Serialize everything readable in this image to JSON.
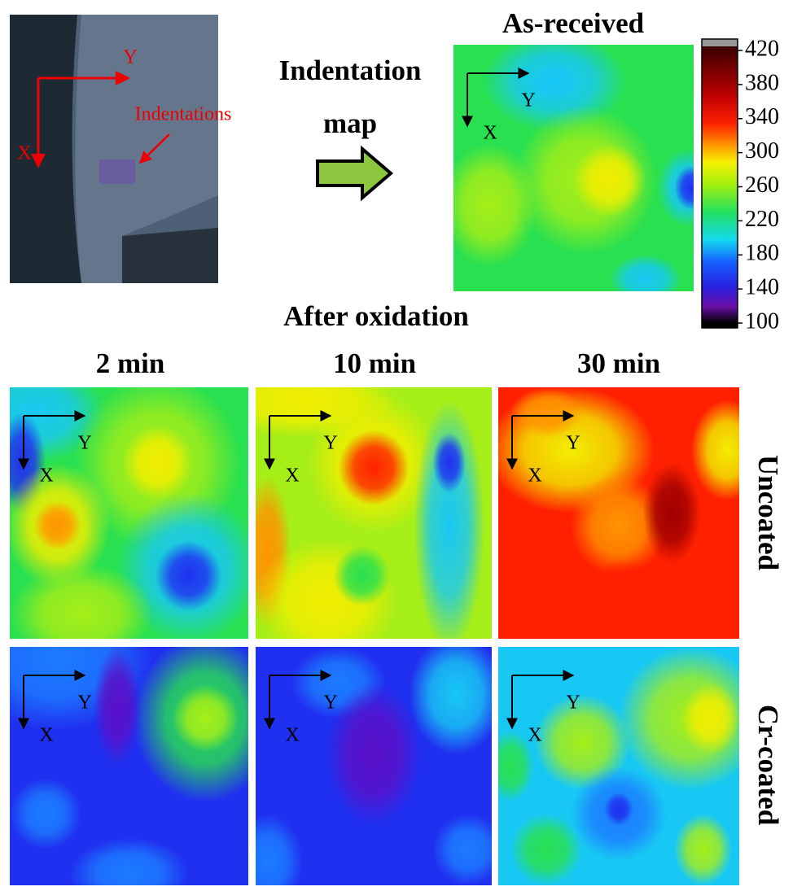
{
  "photo": {
    "axis_x": "X",
    "axis_y": "Y",
    "label": "Indentations"
  },
  "arrow_label": [
    "Indentation",
    "map"
  ],
  "as_received": "As-received",
  "colorbar": {
    "lim": [
      100,
      420
    ],
    "ticks": [
      420,
      380,
      340,
      300,
      260,
      220,
      180,
      140,
      100
    ]
  },
  "after_oxidation": "After oxidation",
  "columns": [
    "2 min",
    "10 min",
    "30 min"
  ],
  "rows": [
    "Uncoated",
    "Cr-coated"
  ],
  "map_axes": {
    "x": "X",
    "y": "Y"
  }
}
